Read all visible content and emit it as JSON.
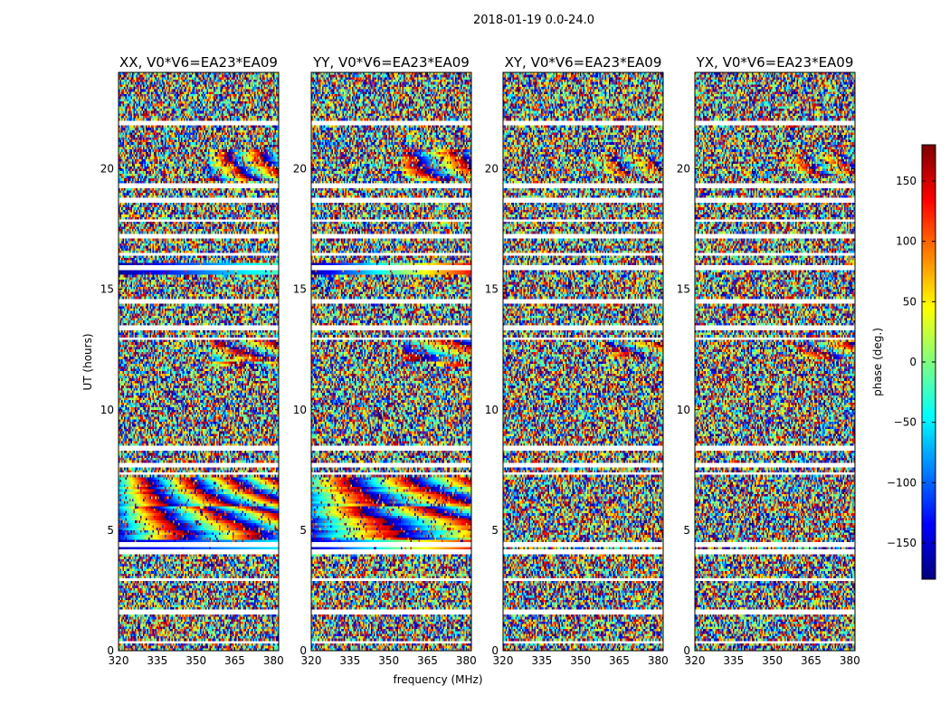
{
  "chart_data": {
    "type": "heatmap",
    "suptitle": "2018-01-19 0.0-24.0",
    "panels": [
      {
        "title": "XX, V0*V6=EA23*EA09",
        "polarization": "XX"
      },
      {
        "title": "YY, V0*V6=EA23*EA09",
        "polarization": "YY"
      },
      {
        "title": "XY, V0*V6=EA23*EA09",
        "polarization": "XY"
      },
      {
        "title": "YX, V0*V6=EA23*EA09",
        "polarization": "YX"
      }
    ],
    "xlabel": "frequency (MHz)",
    "ylabel": "UT (hours)",
    "xlim": [
      320,
      382
    ],
    "ylim": [
      0,
      24
    ],
    "xticks": [
      320,
      335,
      350,
      365,
      380
    ],
    "yticks": [
      0,
      5,
      10,
      15,
      20
    ],
    "colorbar": {
      "label": "phase (deg.)",
      "range": [
        -180,
        180
      ],
      "ticks": [
        150,
        100,
        50,
        0,
        -50,
        -100,
        -150
      ],
      "tick_labels": [
        "150",
        "100",
        "50",
        "0",
        "−50",
        "−100",
        "−150"
      ],
      "colormap": "jet"
    },
    "flagged_gaps_ut_hours": [
      0.35,
      1.6,
      2.95,
      4.1,
      4.4,
      7.35,
      7.7,
      8.4,
      12.95,
      13.4,
      14.5,
      15.9,
      16.45,
      17.2,
      17.85,
      18.7,
      19.3,
      21.9
    ]
  }
}
